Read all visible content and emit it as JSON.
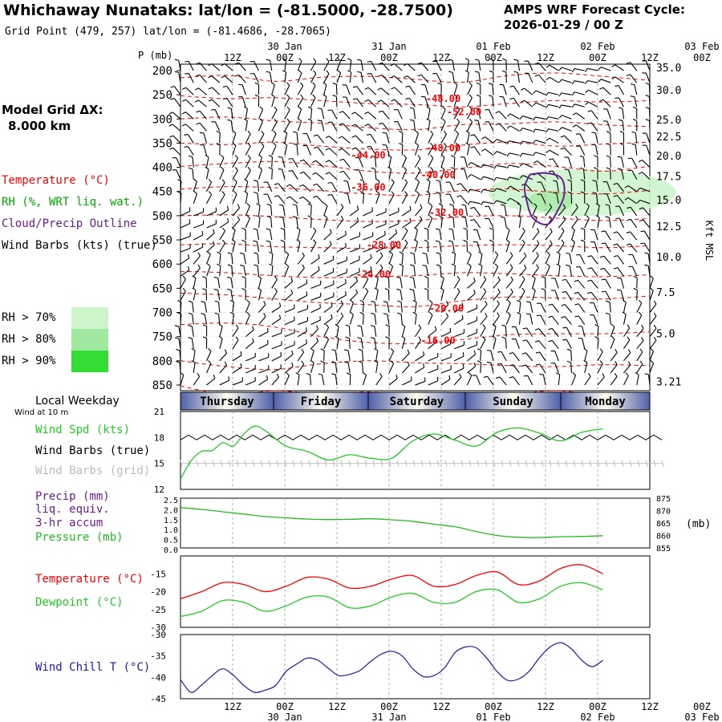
{
  "header": {
    "title": "Whichaway Nunataks:  lat/lon = (-81.5000, -28.7500)",
    "subtitle": "Grid Point (479, 257) lat/lon = (-81.4686, -28.7065)",
    "cycle_line1": "AMPS WRF Forecast Cycle:",
    "cycle_line2": "2026-01-29 / 00  Z"
  },
  "left_panel": {
    "model_grid_label": "Model Grid ΔX:",
    "model_grid_value": "8.000 km",
    "temperature": "Temperature (°C)",
    "rh": "RH (%, WRT liq. wat.)",
    "cloud": "Cloud/Precip Outline",
    "wind_barbs": "Wind Barbs (kts) (true)",
    "rh_levels": [
      "RH > 70%",
      "RH > 80%",
      "RH > 90%"
    ],
    "local_weekday": "Local Weekday",
    "wind_at_10m": "Wind at 10 m",
    "wind_spd": "Wind Spd (kts)",
    "wind_barbs_true": "Wind Barbs (true)",
    "wind_barbs_grid": "Wind Barbs (grid)",
    "precip_line1": "Precip (mm)",
    "precip_line2": "liq. equiv.",
    "precip_line3": "3-hr accum",
    "pressure": "Pressure (mb)",
    "temp2": "Temperature (°C)",
    "dewpoint": "Dewpoint (°C)",
    "windchill": "Wind Chill T (°C)",
    "pressure_axis_label": "P (mb)",
    "kft_label": "Kft MSL",
    "pressure_unit": "(mb)"
  },
  "colors": {
    "temperature": "#ff0000",
    "rh": "#00aa00",
    "cloud": "#6a1b9a",
    "wind_spd": "#22cc22",
    "pressure_line": "#22bb22",
    "dewpoint": "#22cc22",
    "windchill": "#1a1aaa",
    "rh70": "#ccf5cc",
    "rh80": "#a0e8a0",
    "rh90": "#33dd33",
    "weekday_band": "#5060a8"
  },
  "chart_data": [
    {
      "type": "line",
      "name": "time-height cross section",
      "x_ticks_top_row1": [
        "",
        "30 Jan",
        "",
        "31 Jan",
        "",
        "01 Feb",
        "",
        "02 Feb",
        "",
        "03 Feb"
      ],
      "x_ticks_top_row2": [
        "12Z",
        "00Z",
        "12Z",
        "00Z",
        "12Z",
        "00Z",
        "12Z",
        "00Z",
        "12Z",
        "00Z"
      ],
      "pressure_levels": [
        200,
        250,
        300,
        350,
        400,
        450,
        500,
        550,
        600,
        650,
        700,
        750,
        800,
        850
      ],
      "ylim": [
        200,
        875
      ],
      "kft_ticks": [
        "35.0",
        "30.0",
        "25.0",
        "22.5",
        "20.0",
        "17.5",
        "15.0",
        "12.5",
        "10.0",
        "7.5",
        "5.0",
        "3.21"
      ],
      "kft_ticks_at_mb": [
        193,
        240,
        301,
        336,
        376,
        418,
        467,
        522,
        585,
        658,
        743,
        843
      ],
      "isotherm_labels": [
        {
          "text": "-48.00",
          "t": 2.52,
          "p": 265
        },
        {
          "text": "-52.00",
          "t": 2.72,
          "p": 292
        },
        {
          "text": "-48.00",
          "t": 2.52,
          "p": 367
        },
        {
          "text": "-44.00",
          "t": 1.8,
          "p": 382
        },
        {
          "text": "-40.00",
          "t": 2.47,
          "p": 422
        },
        {
          "text": "-36.00",
          "t": 1.8,
          "p": 448
        },
        {
          "text": "-32.00",
          "t": 2.55,
          "p": 500
        },
        {
          "text": "-28.00",
          "t": 1.95,
          "p": 567
        },
        {
          "text": "-24.00",
          "t": 1.85,
          "p": 628
        },
        {
          "text": "-20.00",
          "t": 2.55,
          "p": 698
        },
        {
          "text": "-16.00",
          "t": 2.47,
          "p": 765
        }
      ],
      "isotherm_lines": [
        {
          "p": [
            215,
            210,
            222,
            214,
            212,
            218,
            224,
            210,
            205,
            212,
            220
          ]
        },
        {
          "p": [
            252,
            258,
            256,
            262,
            268,
            270,
            275,
            268,
            262,
            265,
            262
          ]
        },
        {
          "p": [
            300,
            296,
            304,
            309,
            318,
            322,
            312,
            310,
            306,
            312,
            316
          ]
        },
        {
          "p": [
            350,
            353,
            348,
            356,
            362,
            364,
            354,
            348,
            356,
            352,
            348
          ]
        },
        {
          "p": [
            398,
            392,
            388,
            396,
            408,
            412,
            402,
            392,
            398,
            408,
            398
          ]
        },
        {
          "p": [
            445,
            440,
            442,
            448,
            455,
            458,
            448,
            445,
            452,
            455,
            448
          ]
        },
        {
          "p": [
            500,
            498,
            502,
            508,
            512,
            510,
            502,
            500,
            505,
            510,
            506
          ]
        },
        {
          "p": [
            560,
            558,
            564,
            566,
            568,
            566,
            562,
            560,
            562,
            566,
            562
          ]
        },
        {
          "p": [
            615,
            618,
            624,
            628,
            626,
            624,
            618,
            620,
            624,
            626,
            622
          ]
        },
        {
          "p": [
            660,
            664,
            672,
            680,
            684,
            688,
            676,
            668,
            670,
            672,
            666
          ]
        },
        {
          "p": [
            725,
            722,
            730,
            750,
            762,
            764,
            756,
            746,
            744,
            744,
            740
          ]
        },
        {
          "p": [
            800,
            812,
            818,
            806,
            800,
            804,
            806,
            810,
            812,
            808,
            810
          ]
        },
        {
          "p": [
            852,
            870,
            862,
            868,
            864,
            870,
            866,
            868,
            862,
            870,
            866
          ]
        }
      ],
      "rh70_region": {
        "t_center": 3.85,
        "p_center": 452,
        "t_half_width": 0.9,
        "p_half_height": 48
      },
      "rh80_region": {
        "t_center": 3.55,
        "p_center": 470,
        "t_half_width": 0.22,
        "p_half_height": 22
      },
      "cloud_outline": [
        {
          "t": 3.35,
          "p": 415
        },
        {
          "t": 3.5,
          "p": 412
        },
        {
          "t": 3.65,
          "p": 422
        },
        {
          "t": 3.68,
          "p": 455
        },
        {
          "t": 3.62,
          "p": 488
        },
        {
          "t": 3.52,
          "p": 518
        },
        {
          "t": 3.38,
          "p": 505
        },
        {
          "t": 3.32,
          "p": 470
        },
        {
          "t": 3.3,
          "p": 440
        }
      ]
    },
    {
      "type": "line",
      "name": "10 m wind speed",
      "ylim": [
        12,
        21
      ],
      "y_ticks": [
        12,
        15,
        18,
        21
      ],
      "weekdays": [
        "Thursday",
        "Friday",
        "Saturday",
        "Sunday",
        "Monday"
      ],
      "x": [
        0,
        0.125,
        0.25,
        0.375,
        0.5,
        0.625,
        0.75,
        0.875,
        1.0,
        1.25,
        1.5,
        1.75,
        2.0,
        2.25,
        2.5,
        2.75,
        3.0,
        3.25,
        3.5,
        3.75,
        4.0,
        4.25,
        4.5,
        4.75,
        5.0
      ],
      "series": [
        {
          "name": "Wind Spd",
          "values": [
            13.2,
            15.3,
            16.4,
            16.5,
            17.4,
            17.0,
            18.4,
            19.3,
            18.8,
            17.0,
            16.4,
            15.4,
            16.0,
            15.6,
            15.6,
            17.6,
            18.4,
            17.7,
            17.0,
            18.6,
            19.1,
            18.5,
            17.6,
            18.6,
            19.0
          ]
        }
      ],
      "barb_true_level": 18.0,
      "barb_grid_level": 15.0
    },
    {
      "type": "line",
      "name": "precip and pressure",
      "precip_ylim": [
        0.0,
        2.5
      ],
      "precip_ticks": [
        "2.5",
        "2.0",
        "1.5",
        "1.0",
        "0.5",
        "0.0"
      ],
      "pressure_ylim": [
        855,
        875
      ],
      "pressure_ticks": [
        875,
        870,
        865,
        860,
        855
      ],
      "x": [
        0,
        0.25,
        0.5,
        0.75,
        1.0,
        1.25,
        1.5,
        1.75,
        2.0,
        2.25,
        2.5,
        2.75,
        3.0,
        3.25,
        3.5,
        3.75,
        4.0,
        4.25,
        4.5,
        4.75,
        5.0
      ],
      "series": [
        {
          "name": "Pressure",
          "values": [
            871.2,
            870.5,
            869.5,
            868.6,
            867.6,
            867.1,
            866.6,
            866.4,
            866.5,
            866.7,
            866.3,
            865.7,
            864.5,
            863.5,
            861.6,
            860.0,
            859.3,
            859.2,
            859.5,
            859.6,
            859.9
          ]
        }
      ]
    },
    {
      "type": "line",
      "name": "temperature and dewpoint",
      "ylim": [
        -30,
        -10
      ],
      "y_ticks": [
        -15,
        -20,
        -25,
        -30
      ],
      "x": [
        0,
        0.25,
        0.5,
        0.75,
        1.0,
        1.25,
        1.5,
        1.75,
        2.0,
        2.25,
        2.5,
        2.75,
        3.0,
        3.25,
        3.5,
        3.75,
        4.0,
        4.25,
        4.5,
        4.75,
        5.0
      ],
      "series": [
        {
          "name": "Temperature",
          "values": [
            -22.0,
            -20.0,
            -17.5,
            -18.0,
            -20.0,
            -18.5,
            -16.0,
            -16.5,
            -19.0,
            -18.5,
            -16.5,
            -15.5,
            -18.5,
            -18.0,
            -15.5,
            -14.5,
            -18.0,
            -17.0,
            -13.5,
            -12.5,
            -15.0
          ]
        },
        {
          "name": "Dewpoint",
          "values": [
            -27.0,
            -25.5,
            -22.5,
            -23.0,
            -25.5,
            -24.0,
            -21.5,
            -21.5,
            -24.5,
            -24.0,
            -21.5,
            -20.5,
            -23.0,
            -23.0,
            -20.0,
            -19.5,
            -23.0,
            -22.0,
            -18.5,
            -17.5,
            -19.5
          ]
        }
      ]
    },
    {
      "type": "line",
      "name": "wind chill",
      "ylim": [
        -45,
        -30
      ],
      "y_ticks": [
        -30,
        -35,
        -40,
        -45
      ],
      "x_ticks_bottom_row1": [
        "12Z",
        "00Z",
        "12Z",
        "00Z",
        "12Z",
        "00Z",
        "12Z",
        "00Z",
        "12Z",
        "00Z"
      ],
      "x_ticks_bottom_row2": [
        "",
        "30 Jan",
        "",
        "31 Jan",
        "",
        "01 Feb",
        "",
        "02 Feb",
        "",
        "03 Feb"
      ],
      "x": [
        0,
        0.125,
        0.25,
        0.375,
        0.5,
        0.625,
        0.75,
        0.875,
        1.0,
        1.125,
        1.25,
        1.375,
        1.5,
        1.625,
        1.75,
        1.875,
        2.0,
        2.125,
        2.25,
        2.375,
        2.5,
        2.625,
        2.75,
        2.875,
        3.0,
        3.125,
        3.25,
        3.375,
        3.5,
        3.625,
        3.75,
        3.875,
        4.0,
        4.125,
        4.25,
        4.375,
        4.5,
        4.625,
        4.75,
        4.875,
        5.0
      ],
      "series": [
        {
          "name": "Wind Chill T",
          "values": [
            -40.5,
            -43.5,
            -41.8,
            -39.6,
            -38.0,
            -39.5,
            -41.9,
            -43.5,
            -43.0,
            -41.9,
            -38.6,
            -36.9,
            -35.5,
            -36.0,
            -37.9,
            -39.6,
            -39.3,
            -38.4,
            -36.3,
            -34.6,
            -33.9,
            -35.0,
            -38.0,
            -39.8,
            -39.6,
            -37.8,
            -34.2,
            -32.9,
            -33.1,
            -35.5,
            -38.7,
            -40.7,
            -40.4,
            -38.6,
            -35.4,
            -32.9,
            -31.9,
            -33.3,
            -36.0,
            -37.5,
            -36.0
          ]
        }
      ]
    }
  ]
}
